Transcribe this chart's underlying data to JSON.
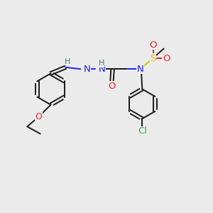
{
  "bg_color": "#ebebeb",
  "bond_color": "#1a1a1a",
  "N_color": "#2020ee",
  "O_color": "#ee2020",
  "S_color": "#cccc00",
  "Cl_color": "#33bb33",
  "H_color": "#447788",
  "figsize": [
    3.0,
    3.0
  ],
  "dpi": 100,
  "xlim": [
    0,
    12
  ],
  "ylim": [
    0,
    12
  ]
}
